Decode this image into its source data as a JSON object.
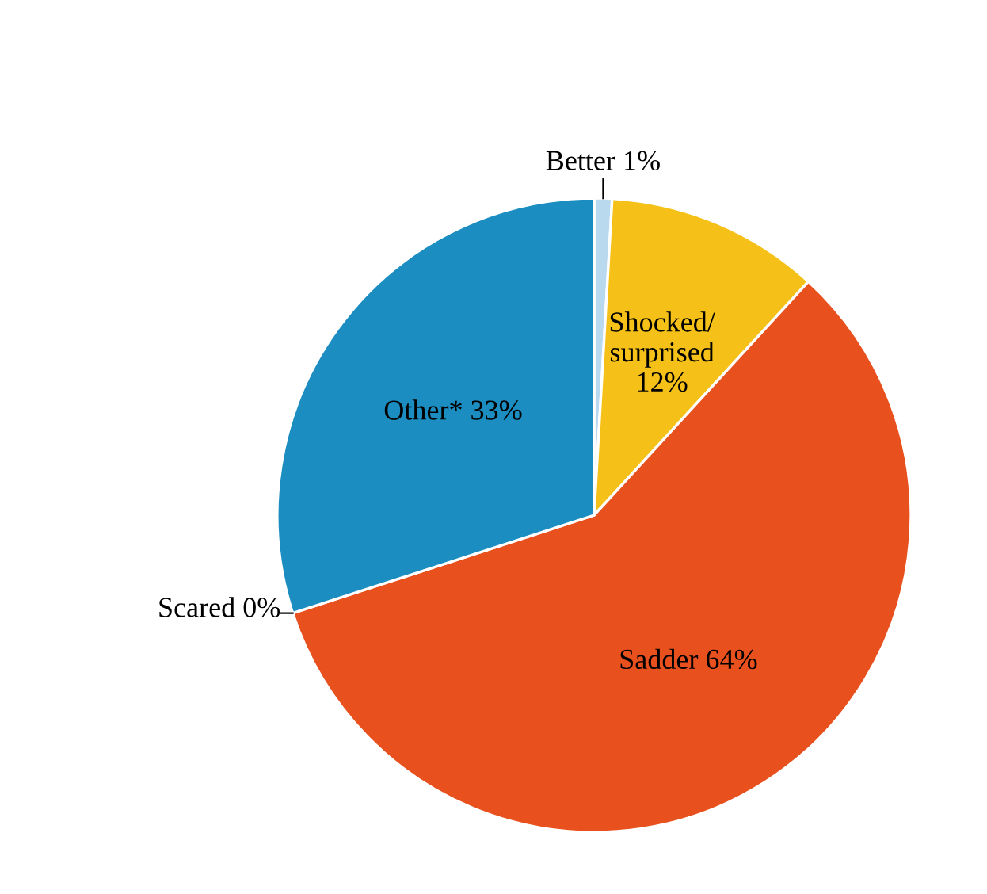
{
  "chart_data": {
    "type": "pie",
    "categories": [
      "Better",
      "Shocked/\nsurprised",
      "Sadder",
      "Scared",
      "Other*"
    ],
    "values": [
      1,
      12,
      64,
      0,
      33
    ],
    "value_labels": [
      "1%",
      "12%",
      "64%",
      "0%",
      "33%"
    ],
    "colors": [
      "#b9d9ef",
      "#f5c118",
      "#e8501e",
      "#e8501e",
      "#1b8dc0"
    ]
  }
}
